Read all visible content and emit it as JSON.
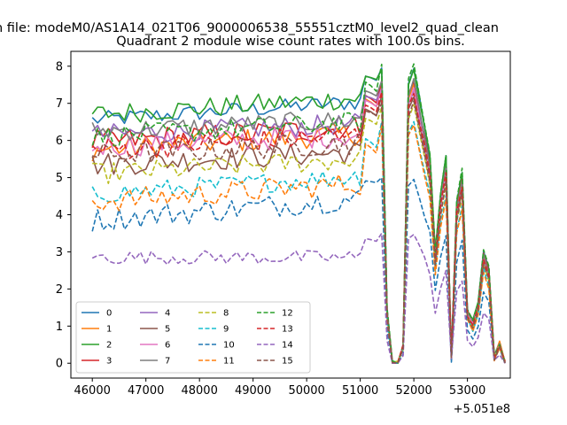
{
  "figure": {
    "suptitle": "n file: modeM0/AS1A14_021T06_9000006538_55551cztM0_level2_quad_clean",
    "title": "Quadrant 2 module wise count rates with 100.0s bins.",
    "offset_text": "+5.051e8"
  },
  "chart_data": {
    "type": "line",
    "title": "Quadrant 2 module wise count rates with 100.0s bins.",
    "xlabel": "",
    "ylabel": "",
    "x_offset": 505100000,
    "xlim": [
      45600,
      53800
    ],
    "ylim": [
      -0.4,
      8.4
    ],
    "xticks": [
      46000,
      47000,
      48000,
      49000,
      50000,
      51000,
      52000,
      53000
    ],
    "xtick_labels": [
      "46000",
      "47000",
      "48000",
      "49000",
      "50000",
      "51000",
      "52000",
      "53000"
    ],
    "yticks": [
      0,
      1,
      2,
      3,
      4,
      5,
      6,
      7,
      8
    ],
    "ytick_labels": [
      "0",
      "1",
      "2",
      "3",
      "4",
      "5",
      "6",
      "7",
      "8"
    ],
    "x_start": 46000,
    "x_step": 100,
    "legend_position": "lower-left",
    "legend_columns": 4,
    "gap_shape": [
      0.92,
      0.85,
      0.75,
      1.0,
      0.18,
      0.0,
      0.0,
      0.06,
      0.95,
      1.0,
      0.9,
      0.8,
      0.7,
      0.38,
      0.58,
      0.7,
      0.02,
      0.55,
      0.65,
      0.18,
      0.14,
      0.2,
      0.38,
      0.32,
      0.02,
      0.07,
      0.0
    ],
    "series": [
      {
        "name": "0",
        "color": "#1f77b4",
        "dash": "solid",
        "base": 6.55,
        "noise": 0.14,
        "trend": 0.5,
        "peak": 7.95
      },
      {
        "name": "1",
        "color": "#ff7f0e",
        "dash": "solid",
        "base": 5.75,
        "noise": 0.2,
        "trend": 0.45,
        "peak": 7.5
      },
      {
        "name": "2",
        "color": "#2ca02c",
        "dash": "solid",
        "base": 6.7,
        "noise": 0.18,
        "trend": 0.45,
        "peak": 7.9
      },
      {
        "name": "3",
        "color": "#d62728",
        "dash": "solid",
        "base": 5.95,
        "noise": 0.22,
        "trend": 0.4,
        "peak": 7.6
      },
      {
        "name": "4",
        "color": "#9467bd",
        "dash": "solid",
        "base": 6.15,
        "noise": 0.18,
        "trend": 0.3,
        "peak": 7.4
      },
      {
        "name": "5",
        "color": "#8c564b",
        "dash": "solid",
        "base": 5.35,
        "noise": 0.2,
        "trend": 0.35,
        "peak": 7.2
      },
      {
        "name": "6",
        "color": "#e377c2",
        "dash": "solid",
        "base": 5.85,
        "noise": 0.2,
        "trend": 0.3,
        "peak": 7.4
      },
      {
        "name": "7",
        "color": "#7f7f7f",
        "dash": "solid",
        "base": 6.25,
        "noise": 0.18,
        "trend": 0.3,
        "peak": 7.6
      },
      {
        "name": "8",
        "color": "#bcbd22",
        "dash": "dashed",
        "base": 5.1,
        "noise": 0.18,
        "trend": 0.4,
        "peak": 6.9
      },
      {
        "name": "9",
        "color": "#17becf",
        "dash": "dashed",
        "base": 4.55,
        "noise": 0.17,
        "trend": 0.5,
        "peak": 6.5
      },
      {
        "name": "10",
        "color": "#1f77b4",
        "dash": "dashed",
        "base": 3.85,
        "noise": 0.2,
        "trend": 0.6,
        "peak": 5.0
      },
      {
        "name": "11",
        "color": "#ff7f0e",
        "dash": "dashed",
        "base": 4.35,
        "noise": 0.2,
        "trend": 0.5,
        "peak": 6.4
      },
      {
        "name": "12",
        "color": "#2ca02c",
        "dash": "dashed",
        "base": 6.1,
        "noise": 0.18,
        "trend": 0.4,
        "peak": 8.05
      },
      {
        "name": "13",
        "color": "#d62728",
        "dash": "dashed",
        "base": 5.75,
        "noise": 0.2,
        "trend": 0.4,
        "peak": 7.3
      },
      {
        "name": "14",
        "color": "#9467bd",
        "dash": "dashed",
        "base": 2.85,
        "noise": 0.12,
        "trend": 0.0,
        "peak": 3.5
      },
      {
        "name": "15",
        "color": "#8c564b",
        "dash": "dashed",
        "base": 5.6,
        "noise": 0.2,
        "trend": 0.35,
        "peak": 7.0
      }
    ]
  }
}
